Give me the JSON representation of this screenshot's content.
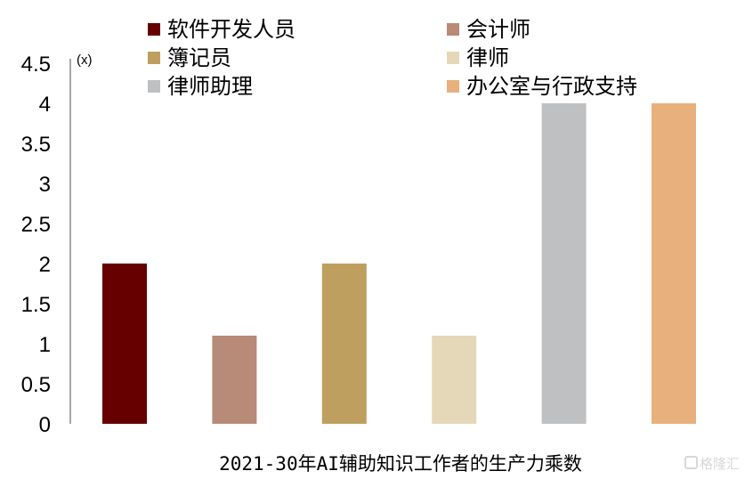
{
  "chart_data": {
    "type": "bar",
    "title": "",
    "xlabel": "2021-30年AI辅助知识工作者的生产力乘数",
    "ylabel": "",
    "unit_label": "(x)",
    "ylim": [
      0,
      4.5
    ],
    "yticks": [
      "0",
      "0.5",
      "1",
      "1.5",
      "2",
      "2.5",
      "3",
      "3.5",
      "4",
      "4.5"
    ],
    "grid": false,
    "legend_position": "top",
    "categories": [
      "软件开发人员",
      "会计师",
      "簿记员",
      "律师",
      "律师助理",
      "办公室与行政支持"
    ],
    "values": [
      2,
      1.1,
      2,
      1.1,
      4,
      4
    ],
    "colors": [
      "#660000",
      "#b88a78",
      "#bf9f5f",
      "#e4d8b8",
      "#bfc0c2",
      "#e8b07c"
    ]
  },
  "watermark": "格隆汇"
}
